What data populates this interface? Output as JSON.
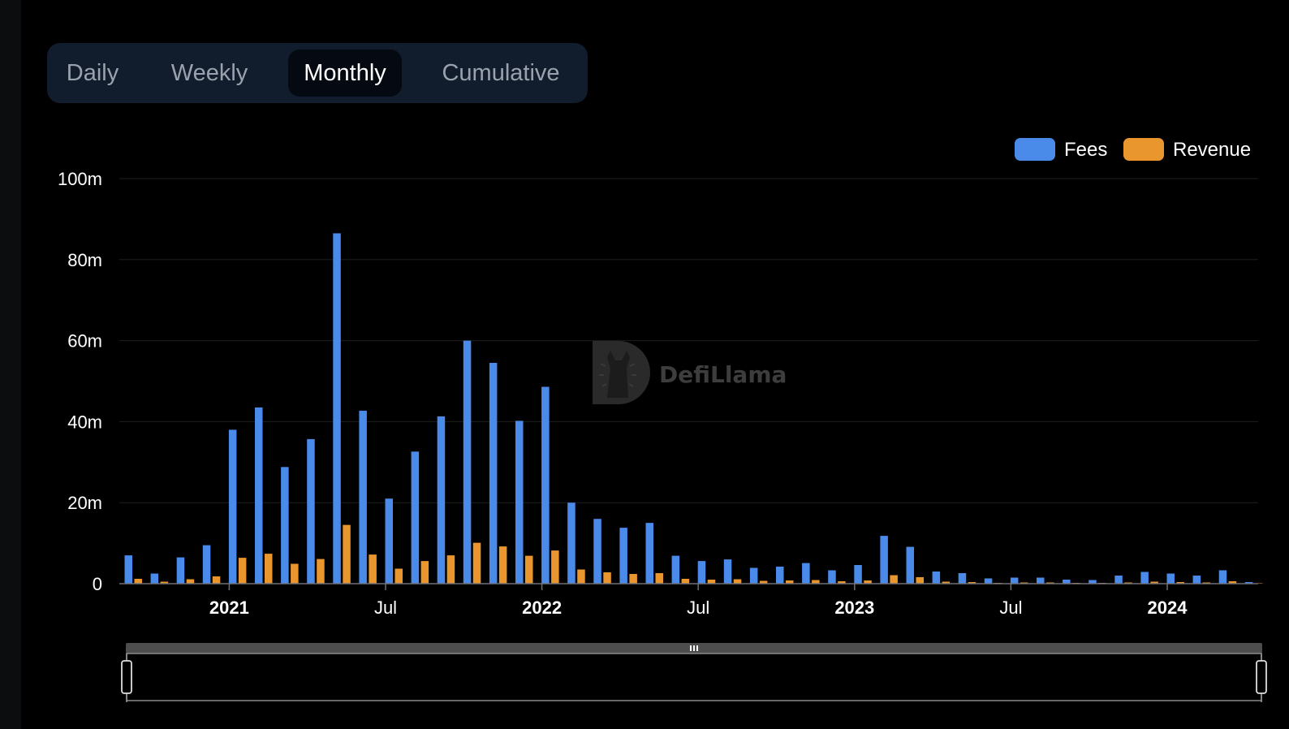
{
  "tabs": [
    {
      "label": "Daily",
      "active": false
    },
    {
      "label": "Weekly",
      "active": false
    },
    {
      "label": "Monthly",
      "active": true
    },
    {
      "label": "Cumulative",
      "active": false
    }
  ],
  "watermark": "DefiLlama",
  "colors": {
    "fees": "#4a8bea",
    "revenue": "#e8962d",
    "background": "#000000",
    "tab_bar": "#111c2c"
  },
  "chart_data": {
    "type": "bar",
    "title": "",
    "xlabel": "",
    "ylabel": "",
    "ylim": [
      0,
      100
    ],
    "unit": "m",
    "y_ticks": [
      "0",
      "20m",
      "40m",
      "60m",
      "80m",
      "100m"
    ],
    "x_ticks": [
      {
        "label": "2021",
        "bold": true
      },
      {
        "label": "Jul",
        "bold": false
      },
      {
        "label": "2022",
        "bold": true
      },
      {
        "label": "Jul",
        "bold": false
      },
      {
        "label": "2023",
        "bold": true
      },
      {
        "label": "Jul",
        "bold": false
      },
      {
        "label": "2024",
        "bold": true
      }
    ],
    "legend": {
      "position": "top-right"
    },
    "grid": true,
    "categories": [
      "2020-09",
      "2020-10",
      "2020-11",
      "2020-12",
      "2021-01",
      "2021-02",
      "2021-03",
      "2021-04",
      "2021-05",
      "2021-06",
      "2021-07",
      "2021-08",
      "2021-09",
      "2021-10",
      "2021-11",
      "2021-12",
      "2022-01",
      "2022-02",
      "2022-03",
      "2022-04",
      "2022-05",
      "2022-06",
      "2022-07",
      "2022-08",
      "2022-09",
      "2022-10",
      "2022-11",
      "2022-12",
      "2023-01",
      "2023-02",
      "2023-03",
      "2023-04",
      "2023-05",
      "2023-06",
      "2023-07",
      "2023-08",
      "2023-09",
      "2023-10",
      "2023-11",
      "2023-12",
      "2024-01",
      "2024-02",
      "2024-03",
      "2024-04"
    ],
    "series": [
      {
        "name": "Fees",
        "color": "#4a8bea",
        "values": [
          7.0,
          2.5,
          6.5,
          9.5,
          38,
          43.5,
          28.8,
          35.7,
          86.5,
          42.7,
          21.0,
          32.6,
          41.3,
          60.0,
          54.5,
          40.2,
          48.6,
          20.0,
          16.0,
          13.8,
          15.0,
          6.9,
          5.6,
          6.0,
          3.9,
          4.2,
          5.1,
          3.3,
          4.6,
          11.8,
          9.1,
          3.0,
          2.6,
          1.3,
          1.5,
          1.5,
          1.0,
          0.9,
          2.0,
          2.9,
          2.5,
          2.0,
          3.3,
          0.4
        ]
      },
      {
        "name": "Revenue",
        "color": "#e8962d",
        "values": [
          1.2,
          0.5,
          1.1,
          1.8,
          6.4,
          7.4,
          4.9,
          6.1,
          14.5,
          7.2,
          3.7,
          5.6,
          7.0,
          10.1,
          9.2,
          6.9,
          8.2,
          3.5,
          2.8,
          2.4,
          2.6,
          1.2,
          1.0,
          1.1,
          0.7,
          0.8,
          0.9,
          0.6,
          0.8,
          2.1,
          1.6,
          0.5,
          0.4,
          0.2,
          0.3,
          0.3,
          0.2,
          0.2,
          0.3,
          0.5,
          0.4,
          0.3,
          0.6,
          0.1
        ]
      }
    ]
  }
}
